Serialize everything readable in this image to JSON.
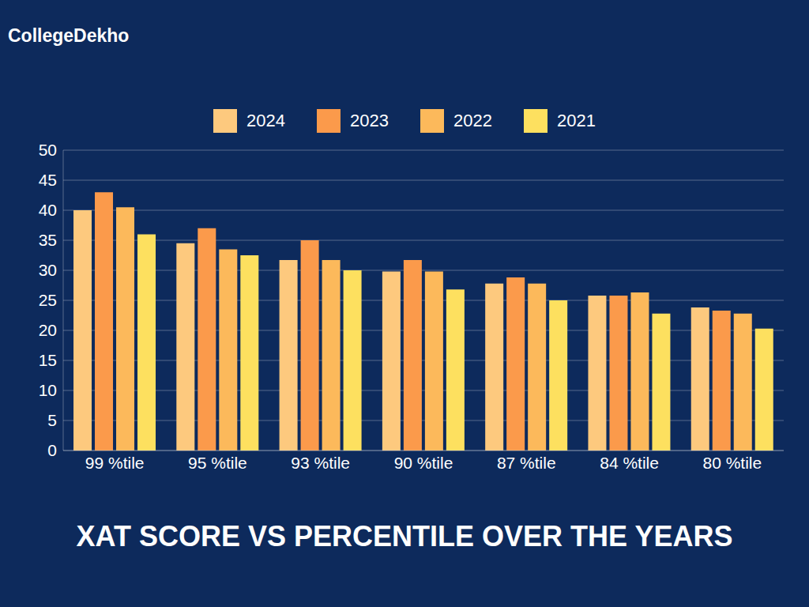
{
  "chart_data": {
    "type": "bar",
    "title": "XAT SCORE VS PERCENTILE OVER THE YEARS",
    "annotations": [
      "CollegeDekho"
    ],
    "categories": [
      "99 %tile",
      "95 %tile",
      "93 %tile",
      "90 %tile",
      "87 %tile",
      "84 %tile",
      "80 %tile"
    ],
    "series": [
      {
        "name": "2024",
        "color": "#fdc97e",
        "values": [
          40,
          34.5,
          31.7,
          29.8,
          27.8,
          25.8,
          23.8
        ]
      },
      {
        "name": "2023",
        "color": "#fb9a4b",
        "values": [
          43,
          37,
          35,
          31.7,
          28.8,
          25.8,
          23.3
        ]
      },
      {
        "name": "2022",
        "color": "#fcb95b",
        "values": [
          40.5,
          33.5,
          31.7,
          29.8,
          27.8,
          26.3,
          22.8
        ]
      },
      {
        "name": "2021",
        "color": "#fde05f",
        "values": [
          36,
          32.5,
          30,
          26.8,
          25,
          22.8,
          20.3
        ]
      }
    ],
    "ylim": [
      0,
      50
    ],
    "yticks": [
      0,
      5,
      10,
      15,
      20,
      25,
      30,
      35,
      40,
      45,
      50
    ],
    "grid": true,
    "legend": "top"
  }
}
